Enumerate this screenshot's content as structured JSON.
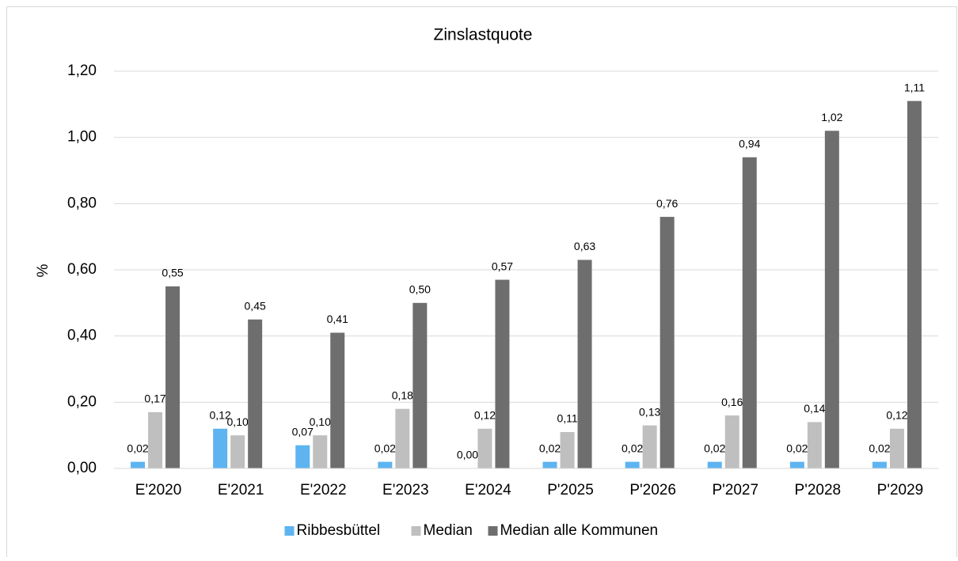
{
  "chart_data": {
    "type": "bar",
    "title": "Zinslastquote",
    "y_label": "%",
    "categories": [
      "E'2020",
      "E'2021",
      "E'2022",
      "E'2023",
      "E'2024",
      "P'2025",
      "P'2026",
      "P'2027",
      "P'2028",
      "P'2029"
    ],
    "series": [
      {
        "name": "Ribbesbüttel",
        "color": "#5db4f0",
        "values": [
          0.02,
          0.12,
          0.07,
          0.02,
          0.0,
          0.02,
          0.02,
          0.02,
          0.02,
          0.02
        ],
        "value_labels": [
          "0,02",
          "0,12",
          "0,07",
          "0,02",
          "0,00",
          "0,02",
          "0,02",
          "0,02",
          "0,02",
          "0,02"
        ]
      },
      {
        "name": "Median",
        "color": "#bfbfbf",
        "values": [
          0.17,
          0.1,
          0.1,
          0.18,
          0.12,
          0.11,
          0.13,
          0.16,
          0.14,
          0.12
        ],
        "value_labels": [
          "0,17",
          "0,10",
          "0,10",
          "0,18",
          "0,12",
          "0,11",
          "0,13",
          "0,16",
          "0,14",
          "0,12"
        ]
      },
      {
        "name": "Median alle Kommunen",
        "color": "#6e6e6e",
        "values": [
          0.55,
          0.45,
          0.41,
          0.5,
          0.57,
          0.63,
          0.76,
          0.94,
          1.02,
          1.11
        ],
        "value_labels": [
          "0,55",
          "0,45",
          "0,41",
          "0,50",
          "0,57",
          "0,63",
          "0,76",
          "0,94",
          "1,02",
          "1,11"
        ]
      }
    ],
    "ylim": [
      0,
      1.2
    ],
    "yticks": [
      {
        "value": 0,
        "label": "0,00"
      },
      {
        "value": 0.2,
        "label": "0,20"
      },
      {
        "value": 0.4,
        "label": "0,40"
      },
      {
        "value": 0.6,
        "label": "0,60"
      },
      {
        "value": 0.8,
        "label": "0,80"
      },
      {
        "value": 1.0,
        "label": "1,00"
      },
      {
        "value": 1.2,
        "label": "1,20"
      }
    ],
    "grid": true,
    "legend": "bottom"
  }
}
